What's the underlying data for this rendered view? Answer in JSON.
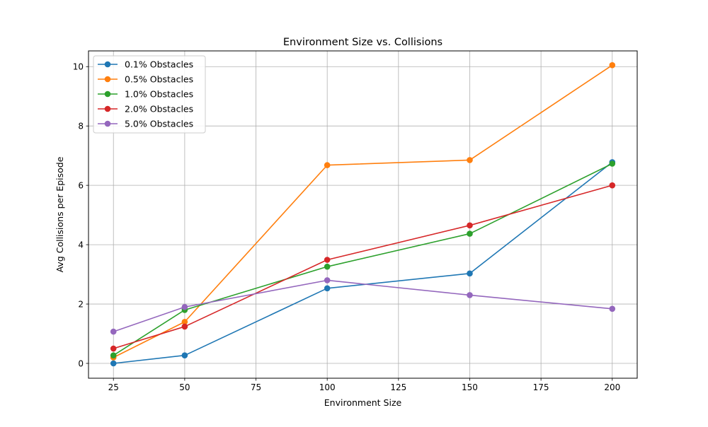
{
  "chart_data": {
    "type": "line",
    "title": "Environment Size vs. Collisions",
    "xlabel": "Environment Size",
    "ylabel": "Avg Collisions per Episode",
    "x": [
      25,
      50,
      100,
      150,
      200
    ],
    "xlim": [
      16.25,
      208.75
    ],
    "ylim": [
      -0.5,
      10.53
    ],
    "xticks": [
      25,
      50,
      75,
      100,
      125,
      150,
      175,
      200
    ],
    "yticks": [
      0,
      2,
      4,
      6,
      8,
      10
    ],
    "grid": true,
    "legend_position": "top-left",
    "series": [
      {
        "name": "0.1% Obstacles",
        "color": "#1f77b4",
        "values": [
          0.0,
          0.27,
          2.53,
          3.03,
          6.78
        ]
      },
      {
        "name": "0.5% Obstacles",
        "color": "#ff7f0e",
        "values": [
          0.2,
          1.4,
          6.68,
          6.85,
          10.05
        ]
      },
      {
        "name": "1.0% Obstacles",
        "color": "#2ca02c",
        "values": [
          0.27,
          1.8,
          3.26,
          4.37,
          6.73
        ]
      },
      {
        "name": "2.0% Obstacles",
        "color": "#d62728",
        "values": [
          0.5,
          1.24,
          3.49,
          4.65,
          6.0
        ]
      },
      {
        "name": "5.0% Obstacles",
        "color": "#9467bd",
        "values": [
          1.07,
          1.9,
          2.8,
          2.3,
          1.84
        ]
      }
    ]
  }
}
